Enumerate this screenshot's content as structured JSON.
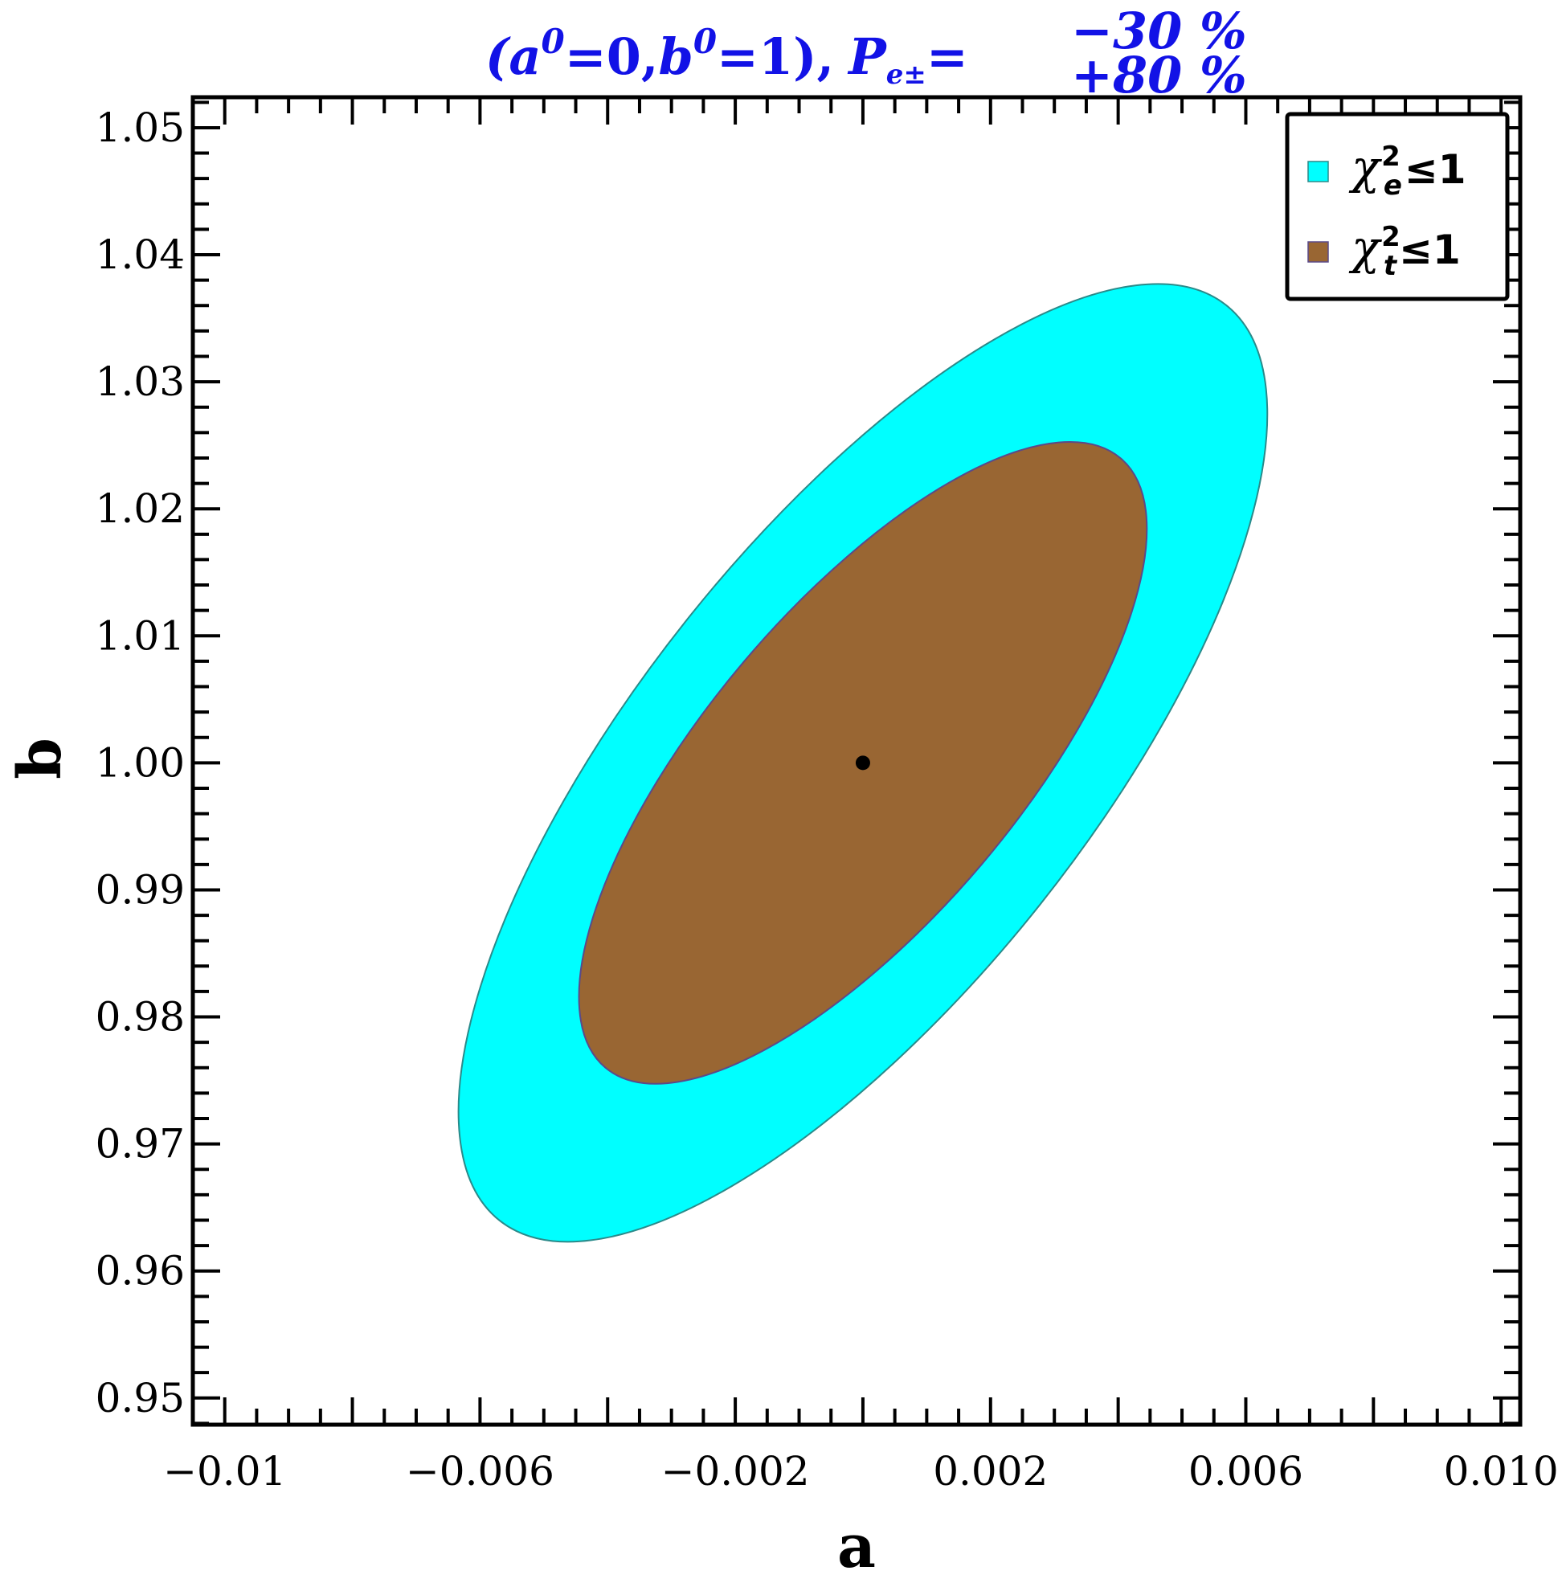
{
  "chart_data": {
    "type": "contour",
    "title": {
      "prefix": "(",
      "a_sym": "a",
      "a_sup": "0",
      "mid": "=0,",
      "b_sym": "b",
      "b_sup": "0",
      "suffix": "=1),",
      "p_sym": "P",
      "p_sub": "e±",
      "eq": "=",
      "p_sup_val": "−30 %",
      "p_sub_val": "+80 %"
    },
    "xlabel": "a",
    "ylabel": "b",
    "xlim": [
      -0.0105,
      0.0103
    ],
    "ylim": [
      0.9479,
      1.0524
    ],
    "xticks": [
      -0.01,
      -0.006,
      -0.002,
      0.002,
      0.006,
      0.01
    ],
    "xtick_labels": [
      "−0.01",
      "−0.006",
      "−0.002",
      "0.002",
      "0.006",
      "0.010"
    ],
    "yticks": [
      0.95,
      0.96,
      0.97,
      0.98,
      0.99,
      1.0,
      1.01,
      1.02,
      1.03,
      1.04,
      1.05
    ],
    "ytick_labels": [
      "0.95",
      "0.96",
      "0.97",
      "0.98",
      "0.99",
      "1.00",
      "1.01",
      "1.02",
      "1.03",
      "1.04",
      "1.05"
    ],
    "grid": false,
    "legend_position": "top-right",
    "series": [
      {
        "name": "chi2_e",
        "label_symbol": "χ",
        "label_sup": "2",
        "label_sub": "e",
        "label_rest": "≤1",
        "color": "#00ffff",
        "stroke": "#2a8a8a",
        "region": "chi2 <= 1",
        "center": [
          0.0,
          1.0
        ],
        "a_range": [
          -0.00672,
          0.00695
        ],
        "b_range": [
          0.9645,
          1.0357
        ]
      },
      {
        "name": "chi2_t",
        "label_symbol": "χ",
        "label_sup": "2",
        "label_sub": "t",
        "label_rest": "≤1",
        "color": "#996633",
        "stroke": "#5a4a8a",
        "region": "chi2 <= 1",
        "center": [
          0.0,
          1.0
        ],
        "a_range": [
          -0.00475,
          0.00485
        ],
        "b_range": [
          0.9764,
          1.0237
        ]
      }
    ],
    "points": [
      {
        "a": 0.0,
        "b": 1.0,
        "color": "#000000"
      }
    ]
  }
}
